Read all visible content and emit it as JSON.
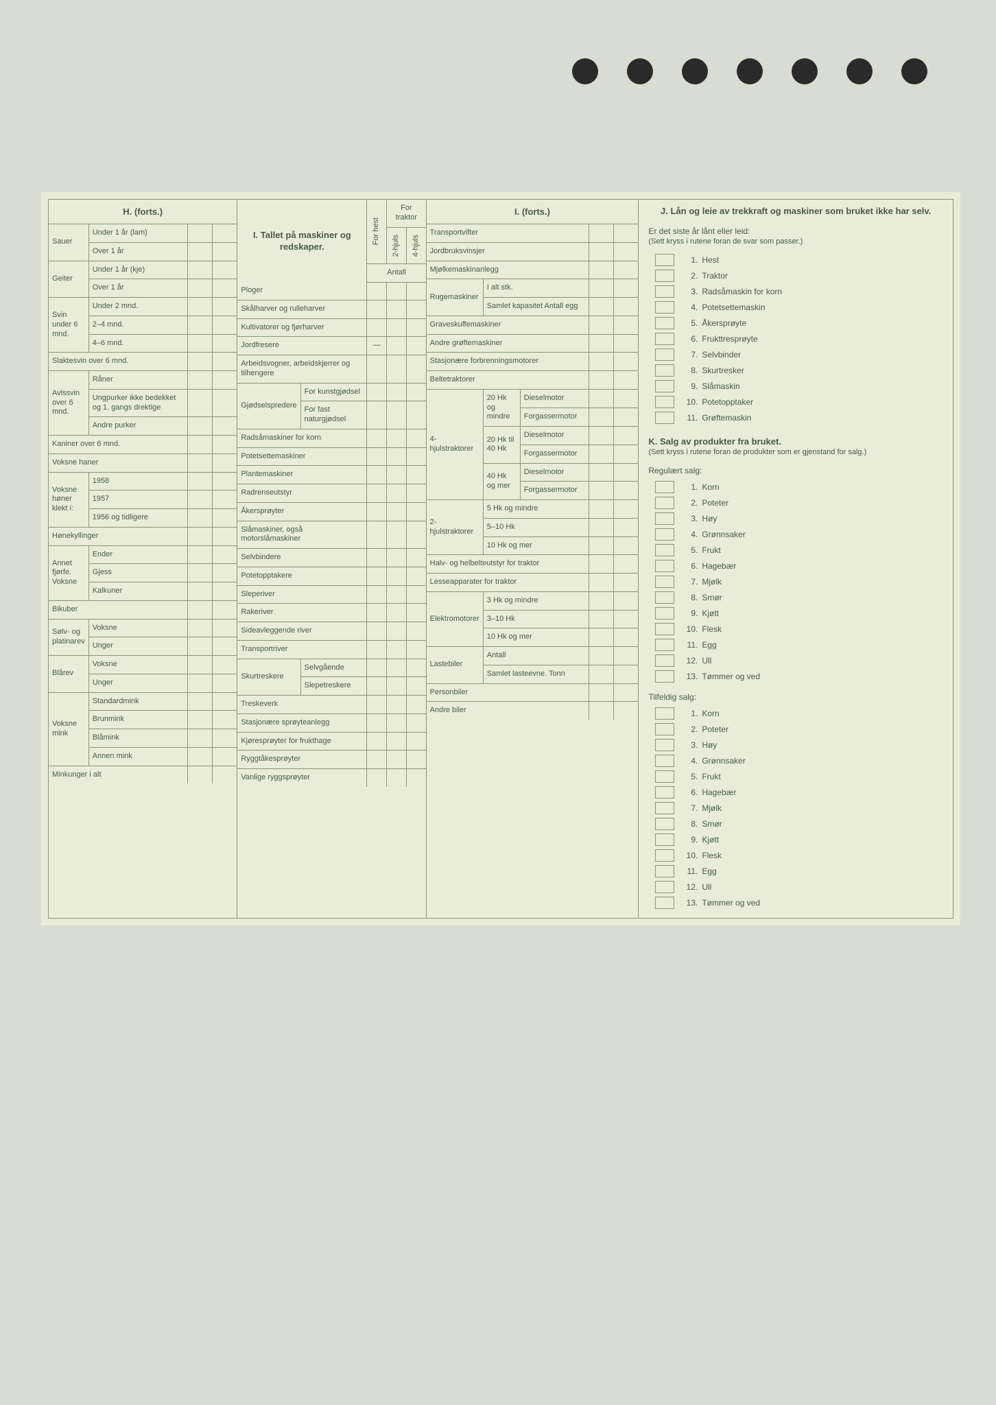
{
  "punch_holes": 7,
  "sections": {
    "H": {
      "title": "H. (forts.)",
      "rows": [
        {
          "group": "Sauer",
          "sub": "Under 1 år (lam)"
        },
        {
          "group": "",
          "sub": "Over 1 år"
        },
        {
          "group": "Geiter",
          "sub": "Under 1 år (kje)"
        },
        {
          "group": "",
          "sub": "Over 1 år"
        },
        {
          "group": "Svin under 6 mnd.",
          "sub": "Under 2 mnd."
        },
        {
          "group": "",
          "sub": "2–4 mnd."
        },
        {
          "group": "",
          "sub": "4–6 mnd."
        },
        {
          "full": "Slaktesvin over 6 mnd."
        },
        {
          "group": "Avlssvin over 6 mnd.",
          "sub": "Råner"
        },
        {
          "group": "",
          "sub": "Ungpurker ikke bedekket og 1. gangs drektige"
        },
        {
          "group": "",
          "sub": "Andre purker"
        },
        {
          "full": "Kaniner over 6 mnd."
        },
        {
          "full": "Voksne haner"
        },
        {
          "group": "Voksne høner klekt i:",
          "sub": "1958"
        },
        {
          "group": "",
          "sub": "1957"
        },
        {
          "group": "",
          "sub": "1956 og tidligere"
        },
        {
          "full": "Hønekyllinger"
        },
        {
          "group": "Annet fjørfe. Voksne",
          "sub": "Ender"
        },
        {
          "group": "",
          "sub": "Gjess"
        },
        {
          "group": "",
          "sub": "Kalkuner"
        },
        {
          "full": "Bikuber"
        },
        {
          "group": "Sølv- og platinarev",
          "sub": "Voksne"
        },
        {
          "group": "",
          "sub": "Unger"
        },
        {
          "group": "Blårev",
          "sub": "Voksne"
        },
        {
          "group": "",
          "sub": "Unger"
        },
        {
          "group": "Voksne mink",
          "sub": "Standardmink"
        },
        {
          "group": "",
          "sub": "Brunmink"
        },
        {
          "group": "",
          "sub": "Blåmink"
        },
        {
          "group": "",
          "sub": "Annen mink"
        },
        {
          "full": "Minkunger i alt"
        }
      ]
    },
    "I1": {
      "title": "I. Tallet på maskiner og redskaper.",
      "head_cols": [
        "For hest",
        "2-hjuls",
        "4-hjuls"
      ],
      "head_group": "For traktor",
      "antall": "Antall",
      "rows": [
        "Ploger",
        "Skålharver og rulleharver",
        "Kultivatorer og fjørharver",
        "Jordfresere",
        "Arbeidsvogner, arbeidskjerrer og tilhengere",
        {
          "group": "Gjødselspredere",
          "sub": "For kunstgjødsel"
        },
        {
          "group": "",
          "sub": "For fast naturgjødsel"
        },
        "Radsåmaskiner for korn",
        "Potetsettemaskiner",
        "Plantemaskiner",
        "Radrenseutstyr",
        "Åkersprøyter",
        "Slåmaskiner, også motorslåmaskiner",
        "Selvbindere",
        "Potetopptakere",
        "Sleperiver",
        "Rakeriver",
        "Sideavleggende river",
        "Transportriver",
        {
          "group": "Skurtreskere",
          "sub": "Selvgående"
        },
        {
          "group": "",
          "sub": "Slepetreskere"
        },
        "Treskeverk",
        "Stasjonære sprøyteanlegg",
        "Kjøresprøyter for frukthage",
        "Ryggtåkesprøyter",
        "Vanlige ryggsprøyter"
      ]
    },
    "I2": {
      "title": "I. (forts.)",
      "rows_top": [
        "Transportvifter",
        "Jordbruksvinsjer",
        "Mjølkemaskinanlegg"
      ],
      "ruge": {
        "label": "Rugemaskiner",
        "items": [
          "I alt stk.",
          "Samlet kapasitet Antall egg"
        ]
      },
      "rows_mid": [
        "Graveskuffemaskiner",
        "Andre grøftemaskiner",
        "Stasjonære forbrenningsmotorer",
        "Beltetraktorer"
      ],
      "traktor4": {
        "label": "4-hjulstraktorer",
        "groups": [
          {
            "hk": "20 Hk og mindre",
            "items": [
              "Dieselmotor",
              "Forgassermotor"
            ]
          },
          {
            "hk": "20 Hk til 40 Hk",
            "items": [
              "Dieselmotor",
              "Forgassermotor"
            ]
          },
          {
            "hk": "40 Hk og mer",
            "items": [
              "Dieselmotor",
              "Forgassermotor"
            ]
          }
        ]
      },
      "traktor2": {
        "label": "2-hjulstraktorer",
        "items": [
          "5 Hk og mindre",
          "5–10 Hk",
          "10 Hk og mer"
        ]
      },
      "rows_after": [
        "Halv- og helbelteutstyr for traktor",
        "Lesseapparater for traktor"
      ],
      "elektro": {
        "label": "Elektromotorer",
        "items": [
          "3 Hk og mindre",
          "3–10 Hk",
          "10 Hk og mer"
        ]
      },
      "laste": {
        "label": "Lastebiler",
        "items": [
          "Antall",
          "Samlet lasteevne. Tonn"
        ]
      },
      "rows_end": [
        "Personbiler",
        "Andre biler"
      ]
    },
    "J": {
      "title": "J. Lån og leie av trekkraft og maskiner som bruket ikke har selv.",
      "sub": "Er det siste år lånt eller leid:",
      "note": "(Sett kryss i rutene foran de svar som passer.)",
      "items": [
        "Hest",
        "Traktor",
        "Radsåmaskin for korn",
        "Potetsettemaskin",
        "Åkersprøyte",
        "Frukttresprøyte",
        "Selvbinder",
        "Skurtresker",
        "Slåmaskin",
        "Potetopptaker",
        "Grøftemaskin"
      ]
    },
    "K": {
      "title": "K. Salg av produkter fra bruket.",
      "note": "(Sett kryss i rutene foran de produkter som er gjenstand for salg.)",
      "reg_head": "Regulært salg:",
      "reg_items": [
        "Korn",
        "Poteter",
        "Høy",
        "Grønnsaker",
        "Frukt",
        "Hagebær",
        "Mjølk",
        "Smør",
        "Kjøtt",
        "Flesk",
        "Egg",
        "Ull",
        "Tømmer og ved"
      ],
      "tilf_head": "Tilfeldig salg:",
      "tilf_items": [
        "Korn",
        "Poteter",
        "Høy",
        "Grønnsaker",
        "Frukt",
        "Hagebær",
        "Mjølk",
        "Smør",
        "Kjøtt",
        "Flesk",
        "Egg",
        "Ull",
        "Tømmer og ved"
      ]
    }
  }
}
